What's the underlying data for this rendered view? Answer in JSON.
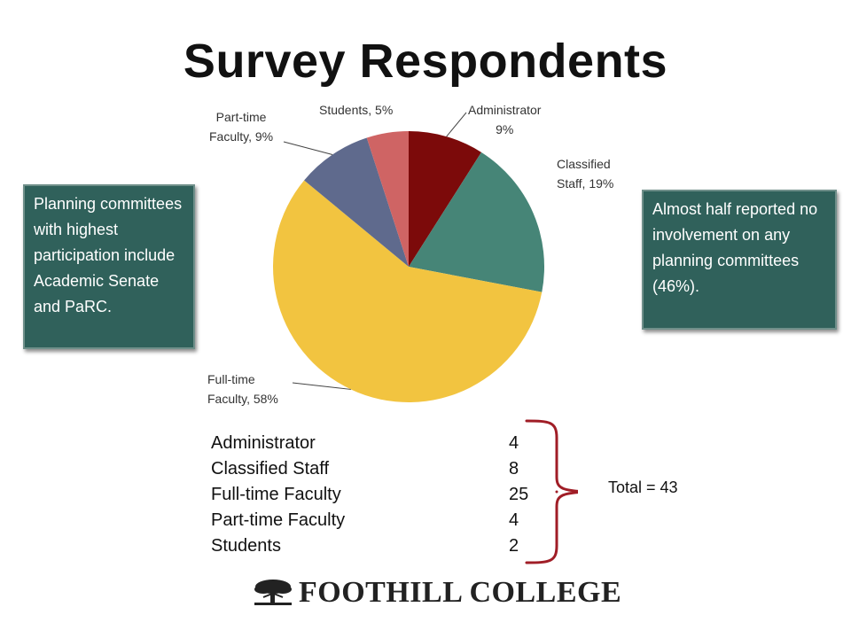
{
  "slide": {
    "title": "Survey Respondents",
    "left_note": "Planning committees with highest participation include Academic Senate and PaRC.",
    "right_note": "Almost half reported no involvement on any planning committees (46%).",
    "total": "Total = 43",
    "logo_text": "FOOTHILL COLLEGE",
    "logo_icon": "tree-icon"
  },
  "chart_data": {
    "type": "pie",
    "categories": [
      "Administrator",
      "Classified Staff",
      "Full-time Faculty",
      "Part-time Faculty",
      "Students"
    ],
    "values": [
      9,
      19,
      58,
      9,
      5
    ],
    "labels": [
      "Administrator 9%",
      "Classified Staff, 19%",
      "Full-time Faculty, 58%",
      "Part-time Faculty, 9%",
      "Students, 5%"
    ],
    "label_lines": [
      [
        "Administrator",
        "9%"
      ],
      [
        "Classified",
        "Staff, 19%"
      ],
      [
        "Full-time",
        "Faculty, 58%"
      ],
      [
        "Part-time",
        "Faculty, 9%"
      ],
      [
        "Students, 5%"
      ]
    ],
    "colors": [
      "#7c0a0a",
      "#468577",
      "#f2c440",
      "#5f6a8d",
      "#cf6464"
    ],
    "start_angle": "12 o'clock, clockwise"
  },
  "table": {
    "rows": [
      {
        "name": "Administrator",
        "count": "4"
      },
      {
        "name": "Classified Staff",
        "count": "8"
      },
      {
        "name": "Full-time Faculty",
        "count": "25"
      },
      {
        "name": "Part-time Faculty",
        "count": "4"
      },
      {
        "name": "Students",
        "count": "2"
      }
    ]
  }
}
